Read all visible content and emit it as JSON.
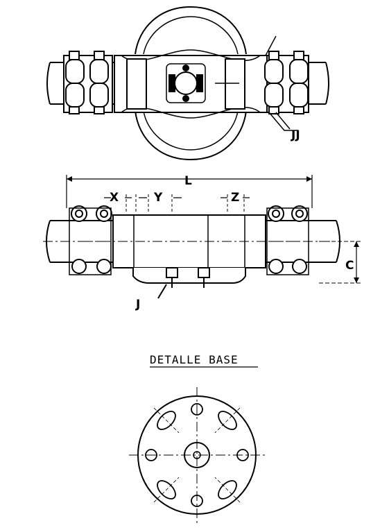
{
  "labels": {
    "jj": "JJ",
    "l": "L",
    "x": "X",
    "y": "Y",
    "z": "Z",
    "c": "C",
    "j": "J"
  },
  "detail": {
    "title": "DETALLE BASE"
  }
}
